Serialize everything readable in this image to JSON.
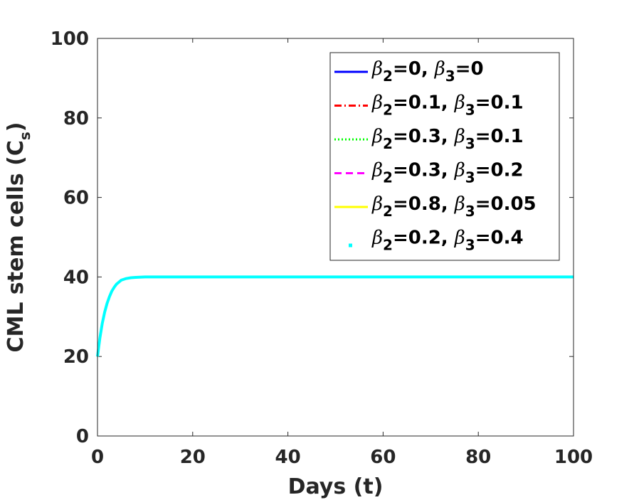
{
  "chart_data": {
    "type": "line",
    "xlabel": "Days (t)",
    "ylabel": {
      "main": "CML stem cells (C",
      "sub": "s",
      "close": ")"
    },
    "xlim": [
      0,
      100
    ],
    "ylim": [
      0,
      100
    ],
    "xticks": [
      "0",
      "20",
      "40",
      "60",
      "80",
      "100"
    ],
    "yticks": [
      "0",
      "20",
      "40",
      "60",
      "80",
      "100"
    ],
    "grid": false,
    "legend_position": "top-right",
    "series": [
      {
        "beta2": "0",
        "beta3": "0",
        "color": "#0000ff",
        "style": "solid"
      },
      {
        "beta2": "0.1",
        "beta3": "0.1",
        "color": "#ff0000",
        "style": "dashdot"
      },
      {
        "beta2": "0.3",
        "beta3": "0.1",
        "color": "#00ff00",
        "style": "dotted"
      },
      {
        "beta2": "0.3",
        "beta3": "0.2",
        "color": "#ff00ff",
        "style": "dashed"
      },
      {
        "beta2": "0.8",
        "beta3": "0.05",
        "color": "#ffff00",
        "style": "solid"
      },
      {
        "beta2": "0.2",
        "beta3": "0.4",
        "color": "#00ffff",
        "style": "point"
      }
    ],
    "curve": {
      "x": [
        0,
        0.5,
        1,
        1.5,
        2,
        2.5,
        3,
        3.5,
        4,
        5,
        6,
        7,
        8,
        10,
        20,
        40,
        60,
        80,
        100
      ],
      "y": [
        20,
        24.6,
        28.3,
        31.1,
        33.3,
        35.0,
        36.4,
        37.4,
        38.2,
        39.2,
        39.6,
        39.8,
        39.9,
        40,
        40,
        40,
        40,
        40,
        40
      ]
    }
  }
}
